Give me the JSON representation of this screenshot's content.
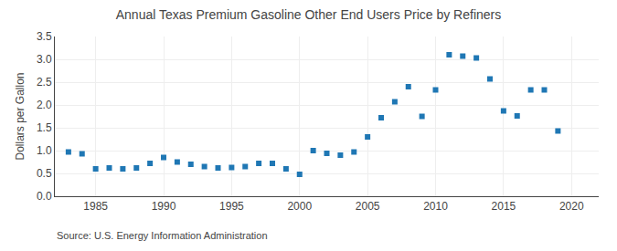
{
  "chart_data": {
    "type": "scatter",
    "title": "Annual Texas Premium Gasoline Other End Users Price by Refiners",
    "ylabel": "Dollars per Gallon",
    "annotations": [
      "Source: U.S. Energy Information Administration"
    ],
    "marker": "square",
    "grid": true,
    "x": [
      1983,
      1984,
      1985,
      1986,
      1987,
      1988,
      1989,
      1990,
      1991,
      1992,
      1993,
      1994,
      1995,
      1996,
      1997,
      1998,
      1999,
      2000,
      2001,
      2002,
      2003,
      2004,
      2005,
      2006,
      2007,
      2008,
      2009,
      2010,
      2011,
      2012,
      2013,
      2014,
      2015,
      2016,
      2017,
      2018,
      2019
    ],
    "values": [
      0.97,
      0.93,
      0.6,
      0.62,
      0.6,
      0.62,
      0.72,
      0.85,
      0.75,
      0.7,
      0.65,
      0.62,
      0.63,
      0.65,
      0.72,
      0.72,
      0.6,
      0.48,
      1.0,
      0.94,
      0.9,
      0.97,
      1.3,
      1.72,
      2.07,
      2.4,
      1.75,
      2.33,
      3.1,
      3.07,
      3.03,
      2.57,
      1.87,
      1.76,
      2.33,
      2.33,
      1.43
    ],
    "xlim": [
      1982,
      2022
    ],
    "xticks": [
      1985,
      1990,
      1995,
      2000,
      2005,
      2010,
      2015,
      2020
    ],
    "ylim": [
      0.0,
      3.5
    ],
    "yticks": [
      {
        "value": 0.0,
        "label": "0.0"
      },
      0.5,
      {
        "value": 1.0,
        "label": "1.0"
      },
      1.5,
      {
        "value": 2.0,
        "label": "2.0"
      },
      2.5,
      {
        "value": 3.0,
        "label": "3.0"
      },
      3.5
    ]
  }
}
